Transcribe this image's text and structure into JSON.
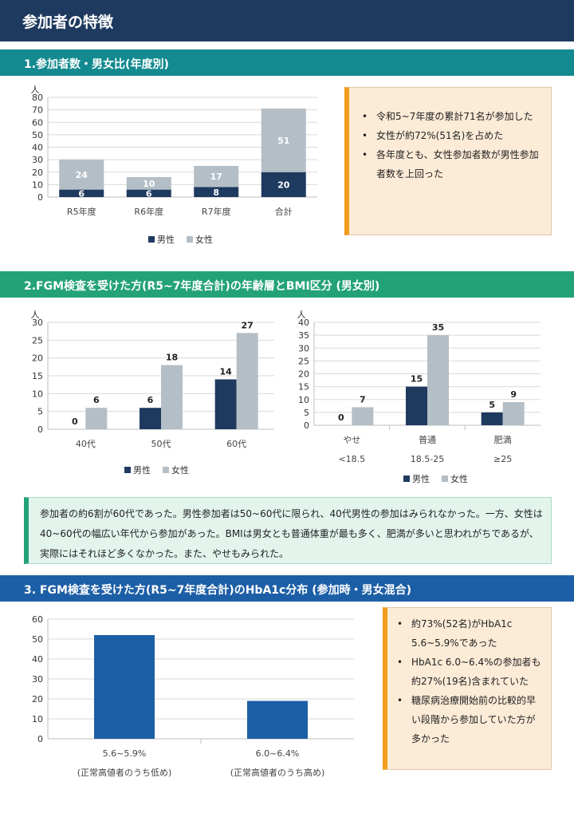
{
  "page": {
    "title": "参加者の特徴"
  },
  "sections": {
    "s1": {
      "title": "1.参加者数・男女比(年度別)",
      "callout": [
        "令和5~7年度の累計71名が参加した",
        "女性が約72%(51名)を占めた",
        "各年度とも、女性参加者数が男性参加者数を上回った"
      ]
    },
    "s2": {
      "title": "2.FGM検査を受けた方(R5~7年度合計)の年齢層とBMI区分 (男女別)",
      "summary": "参加者の約6割が60代であった。男性参加者は50~60代に限られ、40代男性の参加はみられなかった。一方、女性は40~60代の幅広い年代から参加があった。BMIは男女とも普通体重が最も多く、肥満が多いと思われがちであるが、実際にはそれほど多くなかった。また、やせもみられた。"
    },
    "s3": {
      "title": "3. FGM検査を受けた方(R5~7年度合計)のHbA1c分布 (参加時・男女混合)",
      "callout": [
        "約73%(52名)がHbA1c 5.6~5.9%であった",
        "HbA1c 6.0~6.4%の参加者も約27%(19名)含まれていた",
        "糖尿病治療開始前の比較的早い段階から参加していた方が多かった"
      ]
    }
  },
  "colors": {
    "male": "#1f3a5f",
    "female": "#b4bec6",
    "hba1c": "#1d5fa6"
  },
  "chart_data": [
    {
      "id": "participants_by_year",
      "type": "bar",
      "stacked": true,
      "ylabel": "人",
      "ylim": [
        0,
        80
      ],
      "yticks": [
        0,
        10,
        20,
        30,
        40,
        50,
        60,
        70,
        80
      ],
      "categories": [
        "R5年度",
        "R6年度",
        "R7年度",
        "合計"
      ],
      "series": [
        {
          "name": "男性",
          "values": [
            6,
            6,
            8,
            20
          ]
        },
        {
          "name": "女性",
          "values": [
            24,
            10,
            17,
            51
          ]
        }
      ],
      "legend": "bottom",
      "grid": true
    },
    {
      "id": "age_group",
      "type": "bar",
      "stacked": false,
      "ylabel": "人",
      "ylim": [
        0,
        30
      ],
      "yticks": [
        0,
        5,
        10,
        15,
        20,
        25,
        30
      ],
      "categories": [
        "40代",
        "50代",
        "60代"
      ],
      "series": [
        {
          "name": "男性",
          "values": [
            0,
            6,
            14
          ]
        },
        {
          "name": "女性",
          "values": [
            6,
            18,
            27
          ]
        }
      ],
      "legend": "bottom",
      "grid": true
    },
    {
      "id": "bmi",
      "type": "bar",
      "stacked": false,
      "ylabel": "人",
      "ylim": [
        0,
        40
      ],
      "yticks": [
        0,
        5,
        10,
        15,
        20,
        25,
        30,
        35,
        40
      ],
      "categories": [
        "やせ",
        "普通",
        "肥満"
      ],
      "subcategories": [
        "<18.5",
        "18.5-25",
        "≥25"
      ],
      "series": [
        {
          "name": "男性",
          "values": [
            0,
            15,
            5
          ]
        },
        {
          "name": "女性",
          "values": [
            7,
            35,
            9
          ]
        }
      ],
      "legend": "bottom",
      "grid": true
    },
    {
      "id": "hba1c",
      "type": "bar",
      "stacked": false,
      "ylabel": "",
      "ylim": [
        0,
        60
      ],
      "yticks": [
        0,
        10,
        20,
        30,
        40,
        50,
        60
      ],
      "categories": [
        "5.6~5.9%",
        "6.0~6.4%"
      ],
      "subcategories": [
        "(正常高値者のうち低め)",
        "(正常高値者のうち高め)"
      ],
      "series": [
        {
          "name": "",
          "values": [
            52,
            19
          ]
        }
      ],
      "legend": "none",
      "grid": true
    }
  ]
}
